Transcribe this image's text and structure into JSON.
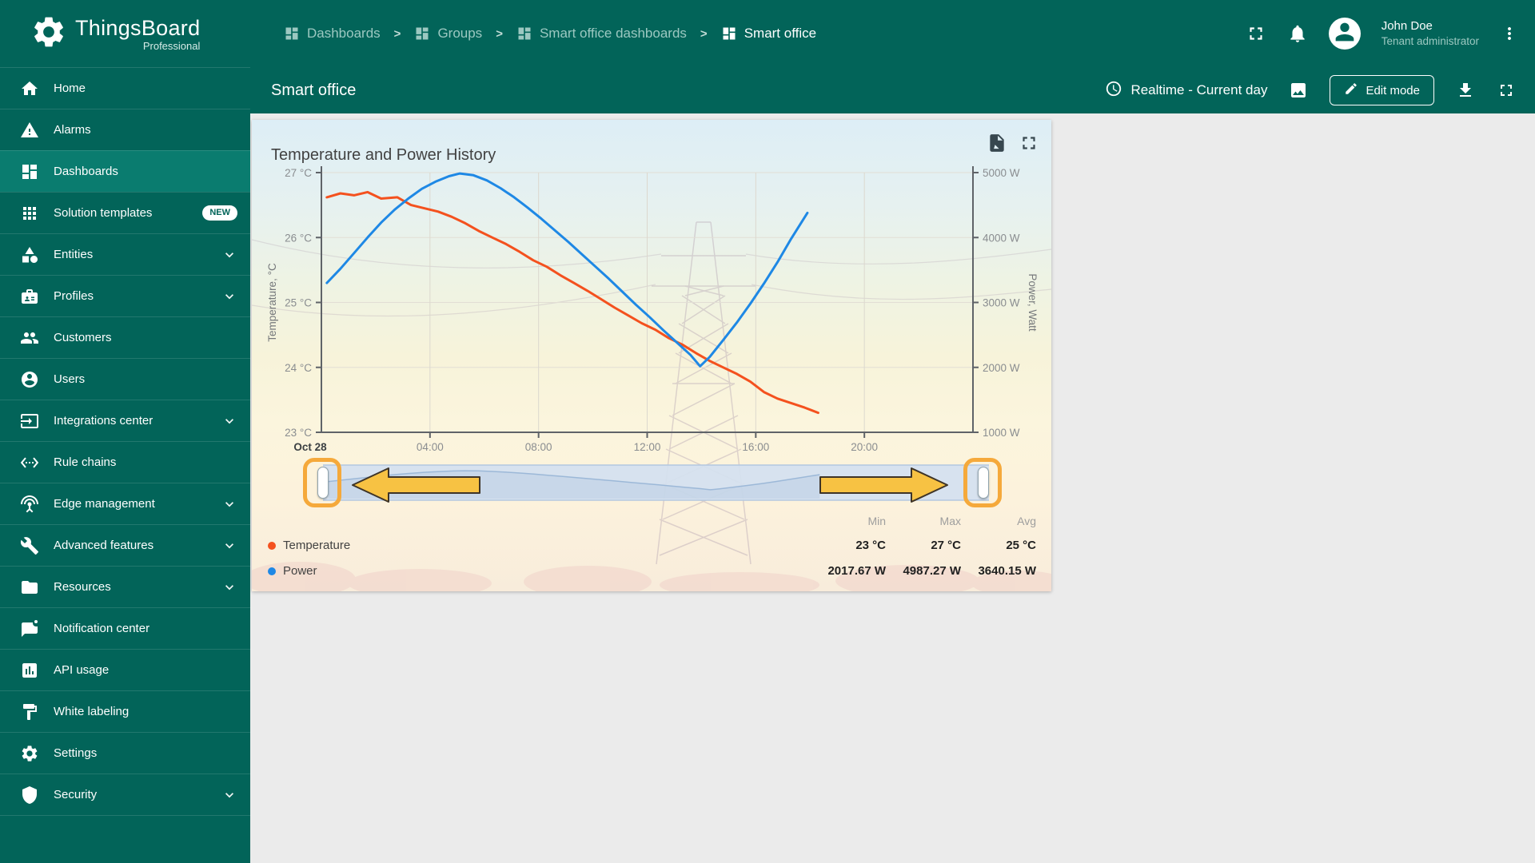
{
  "app": {
    "logo_title": "ThingsBoard",
    "logo_subtitle": "Professional"
  },
  "colors": {
    "primary_teal": "#026459",
    "active_item_teal": "#0a7c6f",
    "temperature_series": "#f4511e",
    "power_series": "#1e88e5",
    "annotation_yellow": "#f7c243",
    "annotation_box_orange": "#f5a93b"
  },
  "header": {
    "breadcrumbs": [
      {
        "label": "Dashboards"
      },
      {
        "label": "Groups"
      },
      {
        "label": "Smart office dashboards"
      },
      {
        "label": "Smart office"
      }
    ],
    "user": {
      "name": "John Doe",
      "role": "Tenant administrator"
    }
  },
  "subheader": {
    "title": "Smart office",
    "timewindow": "Realtime - Current day",
    "edit_button": "Edit mode"
  },
  "sidebar": {
    "items": [
      {
        "label": "Home",
        "icon": "home"
      },
      {
        "label": "Alarms",
        "icon": "alarms"
      },
      {
        "label": "Dashboards",
        "icon": "dashboards",
        "active": true
      },
      {
        "label": "Solution templates",
        "icon": "solution-templates",
        "badge": "NEW"
      },
      {
        "label": "Entities",
        "icon": "entities",
        "expandable": true
      },
      {
        "label": "Profiles",
        "icon": "profiles",
        "expandable": true
      },
      {
        "label": "Customers",
        "icon": "customers"
      },
      {
        "label": "Users",
        "icon": "users"
      },
      {
        "label": "Integrations center",
        "icon": "integrations-center",
        "expandable": true
      },
      {
        "label": "Rule chains",
        "icon": "rule-chains"
      },
      {
        "label": "Edge management",
        "icon": "edge-management",
        "expandable": true
      },
      {
        "label": "Advanced features",
        "icon": "advanced-features",
        "expandable": true
      },
      {
        "label": "Resources",
        "icon": "resources",
        "expandable": true
      },
      {
        "label": "Notification center",
        "icon": "notification-center"
      },
      {
        "label": "API usage",
        "icon": "api-usage"
      },
      {
        "label": "White labeling",
        "icon": "white-labeling"
      },
      {
        "label": "Settings",
        "icon": "settings"
      },
      {
        "label": "Security",
        "icon": "security",
        "expandable": true
      }
    ]
  },
  "widget": {
    "title": "Temperature and Power History"
  },
  "chart_data": {
    "type": "line",
    "title": "Temperature and Power History",
    "x_axis": {
      "date_label": "Oct 28",
      "ticks": [
        "04:00",
        "08:00",
        "12:00",
        "16:00",
        "20:00"
      ],
      "tick_hours": [
        4,
        8,
        12,
        16,
        20
      ],
      "range_hours": [
        0,
        24
      ]
    },
    "y_axis_left": {
      "label": "Temperature, °C",
      "ticks": [
        "27 °C",
        "26 °C",
        "25 °C",
        "24 °C",
        "23 °C"
      ],
      "range": [
        23,
        27
      ]
    },
    "y_axis_right": {
      "label": "Power, Watt",
      "ticks": [
        "5000 W",
        "4000 W",
        "3000 W",
        "2000 W",
        "1000 W"
      ],
      "range": [
        1000,
        5000
      ]
    },
    "grid": true,
    "legend_position": "bottom",
    "series": [
      {
        "name": "Temperature",
        "axis": "left",
        "color": "#f4511e",
        "points": [
          [
            0.2,
            26.62
          ],
          [
            0.7,
            26.68
          ],
          [
            1.2,
            26.65
          ],
          [
            1.7,
            26.7
          ],
          [
            2.2,
            26.6
          ],
          [
            2.8,
            26.62
          ],
          [
            3.3,
            26.5
          ],
          [
            3.8,
            26.45
          ],
          [
            4.3,
            26.4
          ],
          [
            4.8,
            26.32
          ],
          [
            5.3,
            26.22
          ],
          [
            5.8,
            26.1
          ],
          [
            6.3,
            26.0
          ],
          [
            6.8,
            25.9
          ],
          [
            7.3,
            25.78
          ],
          [
            7.8,
            25.65
          ],
          [
            8.3,
            25.55
          ],
          [
            8.8,
            25.42
          ],
          [
            9.3,
            25.3
          ],
          [
            9.8,
            25.18
          ],
          [
            10.3,
            25.05
          ],
          [
            10.8,
            24.92
          ],
          [
            11.3,
            24.8
          ],
          [
            11.8,
            24.68
          ],
          [
            12.3,
            24.58
          ],
          [
            12.8,
            24.45
          ],
          [
            13.3,
            24.35
          ],
          [
            13.8,
            24.22
          ],
          [
            14.3,
            24.1
          ],
          [
            14.8,
            24.0
          ],
          [
            15.3,
            23.9
          ],
          [
            15.8,
            23.78
          ],
          [
            16.3,
            23.62
          ],
          [
            16.8,
            23.52
          ],
          [
            17.3,
            23.45
          ],
          [
            17.8,
            23.38
          ],
          [
            18.3,
            23.3
          ]
        ]
      },
      {
        "name": "Power",
        "axis": "right",
        "color": "#1e88e5",
        "points": [
          [
            0.2,
            3300
          ],
          [
            0.7,
            3520
          ],
          [
            1.2,
            3760
          ],
          [
            1.7,
            4000
          ],
          [
            2.2,
            4230
          ],
          [
            2.7,
            4430
          ],
          [
            3.2,
            4600
          ],
          [
            3.7,
            4750
          ],
          [
            4.2,
            4860
          ],
          [
            4.7,
            4945
          ],
          [
            5.1,
            4987
          ],
          [
            5.6,
            4960
          ],
          [
            6.1,
            4880
          ],
          [
            6.6,
            4760
          ],
          [
            7.1,
            4620
          ],
          [
            7.6,
            4460
          ],
          [
            8.1,
            4290
          ],
          [
            8.6,
            4110
          ],
          [
            9.1,
            3930
          ],
          [
            9.6,
            3740
          ],
          [
            10.1,
            3550
          ],
          [
            10.6,
            3360
          ],
          [
            11.1,
            3160
          ],
          [
            11.6,
            2960
          ],
          [
            12.1,
            2770
          ],
          [
            12.6,
            2570
          ],
          [
            13.1,
            2380
          ],
          [
            13.6,
            2190
          ],
          [
            13.95,
            2018
          ],
          [
            14.3,
            2160
          ],
          [
            14.8,
            2420
          ],
          [
            15.3,
            2690
          ],
          [
            15.8,
            2980
          ],
          [
            16.3,
            3290
          ],
          [
            16.8,
            3620
          ],
          [
            17.3,
            3980
          ],
          [
            17.9,
            4380
          ]
        ]
      }
    ]
  },
  "legend": {
    "headers": [
      "Min",
      "Max",
      "Avg"
    ],
    "rows": [
      {
        "label": "Temperature",
        "color": "#f4511e",
        "min": "23 °C",
        "max": "27 °C",
        "avg": "25 °C"
      },
      {
        "label": "Power",
        "color": "#1e88e5",
        "min": "2017.67 W",
        "max": "4987.27 W",
        "avg": "3640.15 W"
      }
    ]
  },
  "annotations": {
    "arrows": [
      "left",
      "right"
    ],
    "handle_boxes": [
      "left",
      "right"
    ],
    "arrow_fill": "#f7c243",
    "arrow_stroke": "#3e3428",
    "box_stroke": "#f5a93b"
  }
}
